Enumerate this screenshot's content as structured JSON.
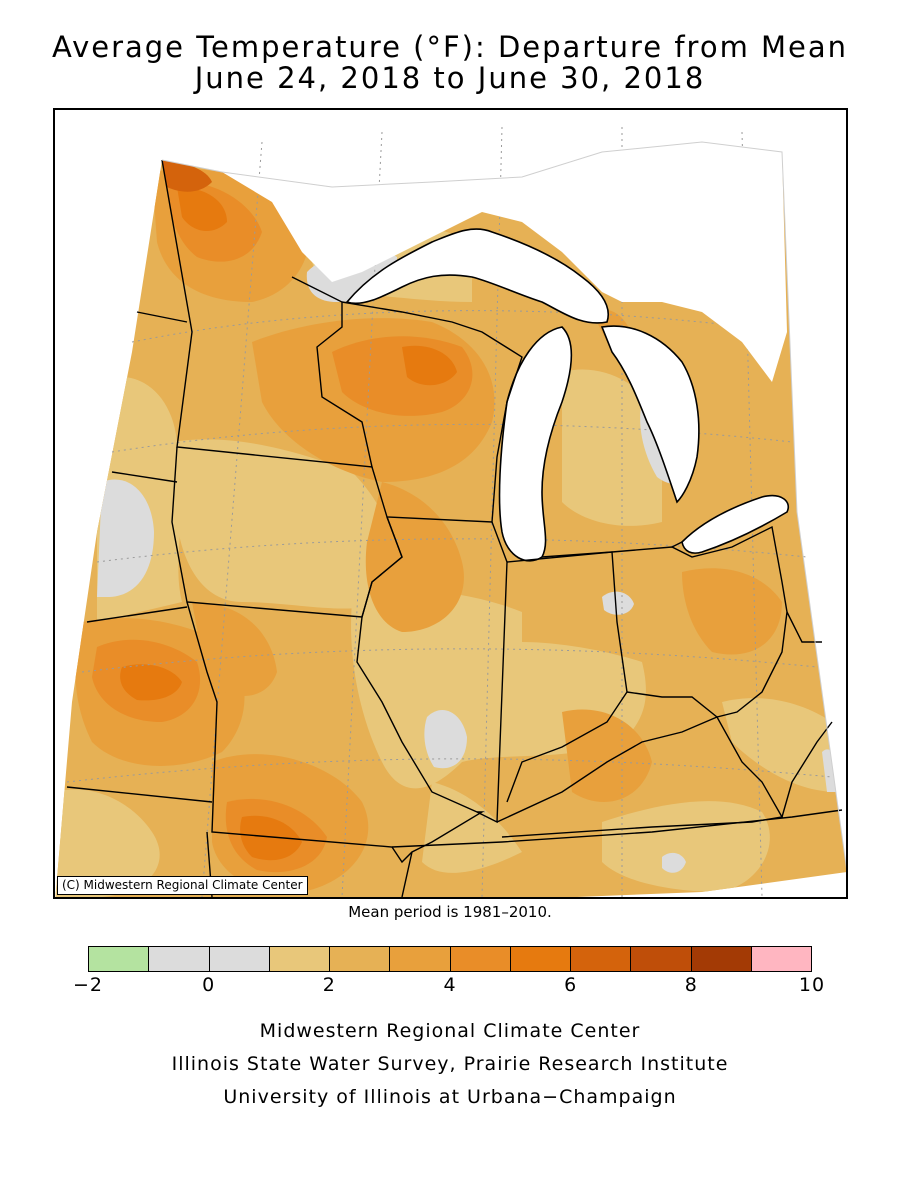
{
  "title": {
    "line1": "Average Temperature (°F): Departure from Mean",
    "line2": "June 24, 2018 to June 30, 2018"
  },
  "map": {
    "credit": "(C) Midwestern Regional Climate Center",
    "background_color": "#ffffff",
    "anomaly_fields": [
      {
        "level": "1 to 2 °F",
        "color": "#e8c77a"
      },
      {
        "level": "2 to 3 °F",
        "color": "#e6b155"
      },
      {
        "level": "3 to 4 °F",
        "color": "#e8a03c"
      },
      {
        "level": "4 to 5 °F",
        "color": "#e98d28"
      },
      {
        "level": "5 to 6 °F",
        "color": "#e67a0f"
      },
      {
        "level": "6 to 7 °F",
        "color": "#d4630c"
      },
      {
        "level": "-1 to 1 °F",
        "color": "#dcdcdc"
      }
    ]
  },
  "mean_period": "Mean period is 1981–2010.",
  "legend": {
    "colors": [
      "#b4e3a0",
      "#dcdcdc",
      "#dcdcdc",
      "#e8c77a",
      "#e6b155",
      "#e8a03c",
      "#e98d28",
      "#e67a0f",
      "#d4630c",
      "#bf4e09",
      "#a33a05",
      "#ffb6c1"
    ],
    "ticks": [
      "−2",
      "0",
      "2",
      "4",
      "6",
      "8",
      "10"
    ],
    "min": -2,
    "max": 10
  },
  "footer": {
    "line1": "Midwestern Regional Climate Center",
    "line2": "Illinois State Water Survey, Prairie Research Institute",
    "line3": "University of Illinois at Urbana−Champaign"
  }
}
